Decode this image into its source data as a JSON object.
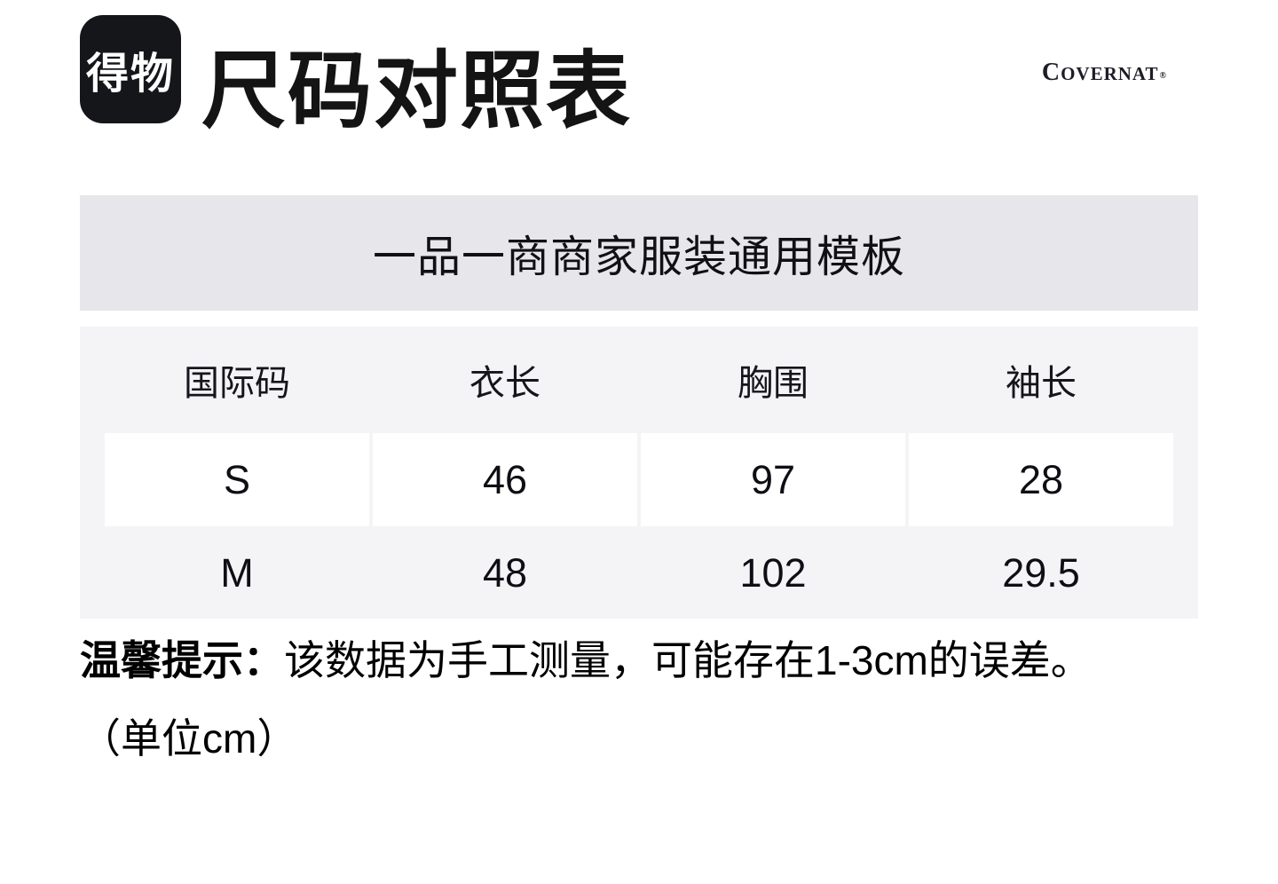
{
  "header": {
    "logo_text": "得物",
    "title": "尺码对照表",
    "brand_initial": "C",
    "brand_rest": "OVERNAT",
    "brand_reg": "®"
  },
  "banner": {
    "text": "一品一商商家服装通用模板"
  },
  "size_table": {
    "columns": [
      "国际码",
      "衣长",
      "胸围",
      "袖长"
    ],
    "rows": [
      [
        "S",
        "46",
        "97",
        "28"
      ],
      [
        "M",
        "48",
        "102",
        "29.5"
      ]
    ]
  },
  "note": {
    "label": "温馨提示：",
    "text": "该数据为手工测量，可能存在1-3cm的误差。",
    "unit": "（单位cm）"
  },
  "colors": {
    "logo_bg": "#15161a",
    "banner_bg": "#e6e6eb",
    "table_bg": "#f4f4f7",
    "cell_bg": "#ffffff",
    "text": "#111111"
  }
}
